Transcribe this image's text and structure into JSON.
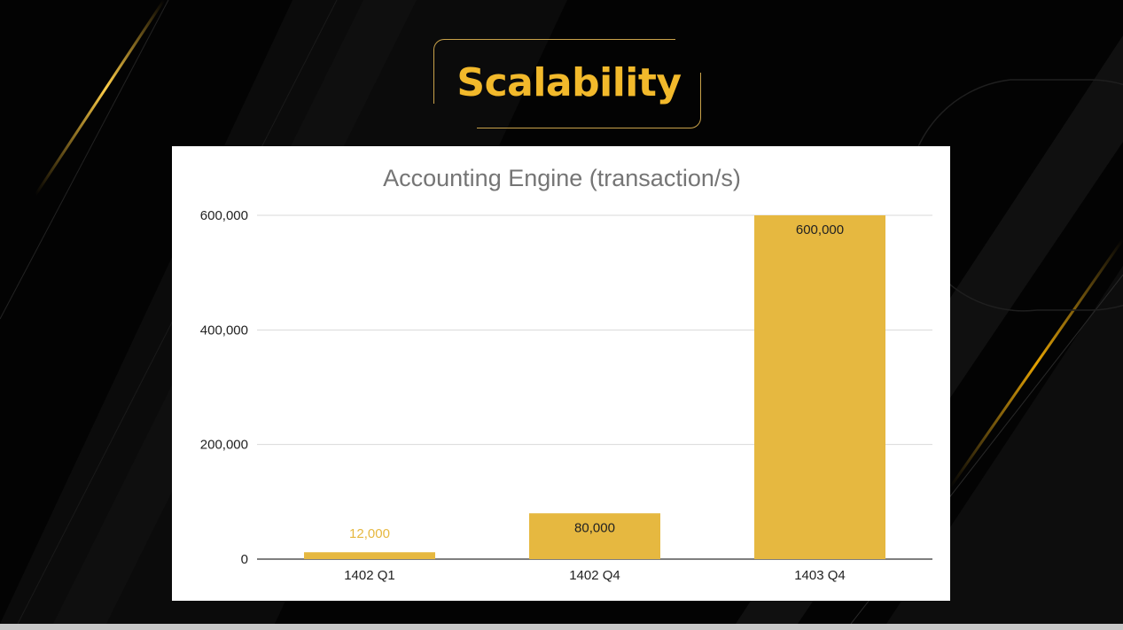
{
  "slide": {
    "title": "Scalability",
    "accent_color": "#f2b92b",
    "frame_color": "#c9a24a",
    "background_color": "#030303"
  },
  "chart_data": {
    "type": "bar",
    "title": "Accounting Engine (transaction/s)",
    "categories": [
      "1402 Q1",
      "1402 Q4",
      "1403 Q4"
    ],
    "values": [
      12000,
      80000,
      600000
    ],
    "data_labels": [
      "12,000",
      "80,000",
      "600,000"
    ],
    "ylim": [
      0,
      600000
    ],
    "yticks": [
      0,
      200000,
      400000,
      600000
    ],
    "ytick_labels": [
      "0",
      "200,000",
      "400,000",
      "600,000"
    ],
    "xlabel": "",
    "ylabel": "",
    "grid": true,
    "legend": "none",
    "bar_color": "#e6b840",
    "data_label_colors": [
      "#e6b840",
      "#222222",
      "#222222"
    ]
  }
}
